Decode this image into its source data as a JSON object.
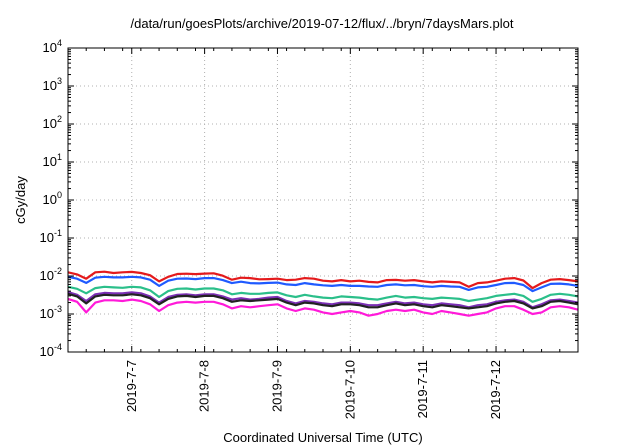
{
  "chart_data": {
    "type": "line",
    "title": "/data/run/goesPlots/archive/2019-07-12/flux/../bryn/7daysMars.plot",
    "xlabel": "Coordinated Universal Time (UTC)",
    "ylabel": "cGy/day",
    "yscale": "log",
    "ylim": [
      0.0001,
      10000
    ],
    "ytick_labels": [
      {
        "base": "10",
        "exp": "-4"
      },
      {
        "base": "10",
        "exp": "-3"
      },
      {
        "base": "10",
        "exp": "-2"
      },
      {
        "base": "10",
        "exp": "-1"
      },
      {
        "base": "10",
        "exp": "0"
      },
      {
        "base": "10",
        "exp": "1"
      },
      {
        "base": "10",
        "exp": "2"
      },
      {
        "base": "10",
        "exp": "3"
      },
      {
        "base": "10",
        "exp": "4"
      }
    ],
    "xlim": [
      "2019-07-06 03:00",
      "2019-07-13 03:00"
    ],
    "xticks": [
      {
        "x": "2019-07-07",
        "label": "2019-7-7"
      },
      {
        "x": "2019-07-08",
        "label": "2019-7-8"
      },
      {
        "x": "2019-07-09",
        "label": "2019-7-9"
      },
      {
        "x": "2019-07-10",
        "label": "2019-7-10"
      },
      {
        "x": "2019-07-11",
        "label": "2019-7-11"
      },
      {
        "x": "2019-07-12",
        "label": "2019-7-12"
      }
    ],
    "grid": true,
    "x": [
      "2019-07-06 03:00",
      "2019-07-06 06:00",
      "2019-07-06 09:00",
      "2019-07-06 12:00",
      "2019-07-06 15:00",
      "2019-07-06 18:00",
      "2019-07-06 21:00",
      "2019-07-07 00:00",
      "2019-07-07 03:00",
      "2019-07-07 06:00",
      "2019-07-07 09:00",
      "2019-07-07 12:00",
      "2019-07-07 15:00",
      "2019-07-07 18:00",
      "2019-07-07 21:00",
      "2019-07-08 00:00",
      "2019-07-08 03:00",
      "2019-07-08 06:00",
      "2019-07-08 09:00",
      "2019-07-08 12:00",
      "2019-07-08 15:00",
      "2019-07-08 18:00",
      "2019-07-08 21:00",
      "2019-07-09 00:00",
      "2019-07-09 03:00",
      "2019-07-09 06:00",
      "2019-07-09 09:00",
      "2019-07-09 12:00",
      "2019-07-09 15:00",
      "2019-07-09 18:00",
      "2019-07-09 21:00",
      "2019-07-10 00:00",
      "2019-07-10 03:00",
      "2019-07-10 06:00",
      "2019-07-10 09:00",
      "2019-07-10 12:00",
      "2019-07-10 15:00",
      "2019-07-10 18:00",
      "2019-07-10 21:00",
      "2019-07-11 00:00",
      "2019-07-11 03:00",
      "2019-07-11 06:00",
      "2019-07-11 09:00",
      "2019-07-11 12:00",
      "2019-07-11 15:00",
      "2019-07-11 18:00",
      "2019-07-11 21:00",
      "2019-07-12 00:00",
      "2019-07-12 03:00",
      "2019-07-12 06:00",
      "2019-07-12 09:00",
      "2019-07-12 12:00",
      "2019-07-12 15:00",
      "2019-07-12 18:00",
      "2019-07-12 21:00",
      "2019-07-13 00:00",
      "2019-07-13 03:00"
    ],
    "series": [
      {
        "color": "#e41a1c",
        "values": [
          0.0125,
          0.011,
          0.0085,
          0.0125,
          0.013,
          0.012,
          0.0125,
          0.0128,
          0.012,
          0.0105,
          0.0072,
          0.0095,
          0.0113,
          0.0115,
          0.0112,
          0.0116,
          0.0118,
          0.0102,
          0.008,
          0.009,
          0.0088,
          0.0082,
          0.0083,
          0.0085,
          0.0078,
          0.008,
          0.0088,
          0.0085,
          0.0075,
          0.0072,
          0.0078,
          0.0072,
          0.0075,
          0.007,
          0.0068,
          0.0078,
          0.0079,
          0.0075,
          0.0078,
          0.0072,
          0.0068,
          0.0072,
          0.007,
          0.0068,
          0.0052,
          0.0065,
          0.0068,
          0.0075,
          0.0085,
          0.0088,
          0.0076,
          0.0048,
          0.0065,
          0.008,
          0.0083,
          0.0078,
          0.0072
        ]
      },
      {
        "color": "#1f5aff",
        "values": [
          0.0095,
          0.0085,
          0.0066,
          0.009,
          0.0095,
          0.0092,
          0.0092,
          0.0095,
          0.0092,
          0.008,
          0.0055,
          0.0075,
          0.0085,
          0.0086,
          0.0083,
          0.0088,
          0.0088,
          0.0078,
          0.0065,
          0.0071,
          0.0065,
          0.0064,
          0.0066,
          0.0067,
          0.006,
          0.0058,
          0.0065,
          0.006,
          0.0057,
          0.0055,
          0.0058,
          0.0055,
          0.0055,
          0.0053,
          0.0052,
          0.0058,
          0.006,
          0.0057,
          0.0058,
          0.0054,
          0.0052,
          0.0055,
          0.0053,
          0.0052,
          0.0043,
          0.005,
          0.0052,
          0.0058,
          0.0065,
          0.0066,
          0.0058,
          0.004,
          0.005,
          0.0062,
          0.0063,
          0.006,
          0.0055
        ]
      },
      {
        "color": "#2bbf8a",
        "values": [
          0.0052,
          0.0046,
          0.0035,
          0.0048,
          0.0052,
          0.005,
          0.0049,
          0.0052,
          0.005,
          0.0042,
          0.0028,
          0.004,
          0.0046,
          0.0047,
          0.0044,
          0.0047,
          0.0047,
          0.0042,
          0.0033,
          0.0036,
          0.0034,
          0.0034,
          0.0036,
          0.0037,
          0.0031,
          0.0028,
          0.0032,
          0.0029,
          0.0027,
          0.0026,
          0.0029,
          0.0028,
          0.0027,
          0.0025,
          0.0024,
          0.0027,
          0.003,
          0.0027,
          0.0028,
          0.0026,
          0.0025,
          0.0027,
          0.0026,
          0.0025,
          0.0022,
          0.0024,
          0.0026,
          0.003,
          0.0032,
          0.0034,
          0.003,
          0.0021,
          0.0025,
          0.0032,
          0.0034,
          0.0032,
          0.0029
        ]
      },
      {
        "color": "#7b2fb5",
        "values": [
          0.0038,
          0.0032,
          0.0022,
          0.0033,
          0.0036,
          0.0035,
          0.0035,
          0.0037,
          0.0035,
          0.0029,
          0.002,
          0.0028,
          0.0032,
          0.0033,
          0.0031,
          0.0033,
          0.0033,
          0.0029,
          0.0024,
          0.0026,
          0.0024,
          0.0025,
          0.0027,
          0.0028,
          0.0022,
          0.0019,
          0.0022,
          0.0021,
          0.0019,
          0.0018,
          0.002,
          0.002,
          0.0019,
          0.0017,
          0.0017,
          0.0019,
          0.0021,
          0.0019,
          0.002,
          0.0018,
          0.0017,
          0.0019,
          0.0018,
          0.0017,
          0.0015,
          0.0017,
          0.0018,
          0.0021,
          0.0023,
          0.0024,
          0.0021,
          0.0015,
          0.0018,
          0.0023,
          0.0024,
          0.0022,
          0.002
        ]
      },
      {
        "color": "#222222",
        "values": [
          0.0034,
          0.0029,
          0.0019,
          0.0029,
          0.0032,
          0.0031,
          0.0031,
          0.0033,
          0.0031,
          0.0026,
          0.0018,
          0.0025,
          0.0029,
          0.003,
          0.0028,
          0.003,
          0.003,
          0.0026,
          0.0021,
          0.0023,
          0.0022,
          0.0023,
          0.0024,
          0.0025,
          0.002,
          0.0017,
          0.002,
          0.0019,
          0.0017,
          0.0016,
          0.0018,
          0.0018,
          0.0017,
          0.0015,
          0.0015,
          0.0017,
          0.0019,
          0.0017,
          0.0018,
          0.0016,
          0.0015,
          0.0017,
          0.0016,
          0.0015,
          0.0014,
          0.0015,
          0.0016,
          0.0019,
          0.0021,
          0.0022,
          0.0019,
          0.0014,
          0.0016,
          0.0021,
          0.0022,
          0.002,
          0.0018
        ]
      },
      {
        "color": "#ff1ad9",
        "values": [
          0.0025,
          0.0021,
          0.0011,
          0.002,
          0.0023,
          0.0023,
          0.0022,
          0.0024,
          0.0022,
          0.0018,
          0.0012,
          0.0017,
          0.002,
          0.0021,
          0.002,
          0.0021,
          0.0021,
          0.0018,
          0.0014,
          0.0016,
          0.0015,
          0.0016,
          0.0017,
          0.0018,
          0.0014,
          0.0012,
          0.0014,
          0.0013,
          0.0011,
          0.001,
          0.0011,
          0.0012,
          0.0011,
          0.0009,
          0.001,
          0.0012,
          0.0013,
          0.0012,
          0.0013,
          0.0011,
          0.001,
          0.0012,
          0.0011,
          0.001,
          0.0009,
          0.001,
          0.0011,
          0.0014,
          0.0016,
          0.0016,
          0.0013,
          0.001,
          0.0011,
          0.0015,
          0.0016,
          0.0015,
          0.0013
        ]
      }
    ]
  }
}
